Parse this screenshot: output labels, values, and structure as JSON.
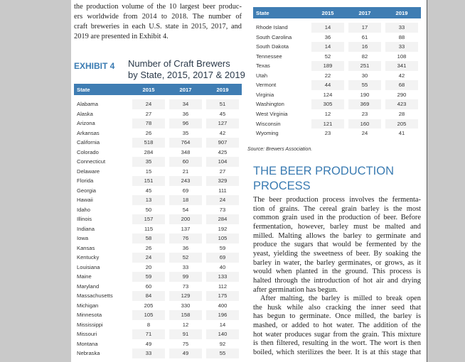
{
  "intro": {
    "lines": [
      "the production volume of the 10 largest beer produc-",
      "ers worldwide from 2014 to 2018. The number of",
      "craft breweries in each U.S. state in 2015, 2017, and",
      "2019 are presented in Exhibit 4."
    ]
  },
  "exhibit": {
    "label": "EXHIBIT 4",
    "title_lines": [
      "Number of Craft Brewers",
      "by State, 2015, 2017 & 2019"
    ]
  },
  "table_left": {
    "header": [
      "State",
      "2015",
      "2017",
      "2019"
    ],
    "rows": [
      [
        "Alabama",
        24,
        34,
        51
      ],
      [
        "Alaska",
        27,
        36,
        45
      ],
      [
        "Arizona",
        78,
        96,
        127
      ],
      [
        "Arkansas",
        26,
        35,
        42
      ],
      [
        "California",
        518,
        764,
        907
      ],
      [
        "Colorado",
        284,
        348,
        425
      ],
      [
        "Connecticut",
        35,
        60,
        104
      ],
      [
        "Delaware",
        15,
        21,
        27
      ],
      [
        "Florida",
        151,
        243,
        329
      ],
      [
        "Georgia",
        45,
        69,
        111
      ],
      [
        "Hawaii",
        13,
        18,
        24
      ],
      [
        "Idaho",
        50,
        54,
        73
      ],
      [
        "Illinois",
        157,
        200,
        284
      ],
      [
        "Indiana",
        115,
        137,
        192
      ],
      [
        "Iowa",
        58,
        76,
        105
      ],
      [
        "Kansas",
        26,
        36,
        59
      ],
      [
        "Kentucky",
        24,
        52,
        69
      ],
      [
        "Louisiana",
        20,
        33,
        40
      ],
      [
        "Maine",
        59,
        99,
        133
      ],
      [
        "Maryland",
        60,
        73,
        112
      ],
      [
        "Massachusetts",
        84,
        129,
        175
      ],
      [
        "Michigan",
        205,
        330,
        400
      ],
      [
        "Minnesota",
        105,
        158,
        196
      ],
      [
        "Mississippi",
        8,
        12,
        14
      ],
      [
        "Missouri",
        71,
        91,
        140
      ],
      [
        "Montana",
        49,
        75,
        92
      ],
      [
        "Nebraska",
        33,
        49,
        55
      ]
    ]
  },
  "table_right": {
    "header": [
      "State",
      "2015",
      "2017",
      "2019"
    ],
    "rows": [
      [
        "Rhode Island",
        14,
        17,
        33
      ],
      [
        "South Carolina",
        36,
        61,
        88
      ],
      [
        "South Dakota",
        14,
        16,
        33
      ],
      [
        "Tennessee",
        52,
        82,
        108
      ],
      [
        "Texas",
        189,
        251,
        341
      ],
      [
        "Utah",
        22,
        30,
        42
      ],
      [
        "Vermont",
        44,
        55,
        68
      ],
      [
        "Virginia",
        124,
        190,
        290
      ],
      [
        "Washington",
        305,
        369,
        423
      ],
      [
        "West Virginia",
        12,
        23,
        28
      ],
      [
        "Wisconsin",
        121,
        160,
        205
      ],
      [
        "Wyoming",
        23,
        24,
        41
      ]
    ]
  },
  "source": "Source: Brewers Association.",
  "section": {
    "heading_lines": [
      "THE BEER PRODUCTION",
      "PROCESS"
    ],
    "paragraphs": [
      [
        "The beer production process involves the fermenta-",
        "tion of grains. The cereal grain barley is the most",
        "common grain used in the production of beer. Before",
        "fermentation, however, barley must be malted and",
        "milled. Malting allows the barley to germinate and",
        "produce the sugars that would be fermented by the",
        "yeast, yielding the sweetness of beer. By soaking the",
        "barley in water, the barley germinates, or grows, as it",
        "would when planted in the ground. This process is",
        "halted through the introduction of hot air and drying",
        "after germination has begun."
      ],
      [
        "After malting, the barley is milled to break open",
        "the husk while also cracking the inner seed that",
        "has begun to germinate. Once milled, the barley is",
        "mashed, or added to hot water. The addition of the",
        "hot water produces sugar from the grain. This mixture",
        "is then filtered, resulting in the wort. The wort is then",
        "boiled, which sterilizes the beer. It is at this stage that"
      ]
    ]
  }
}
